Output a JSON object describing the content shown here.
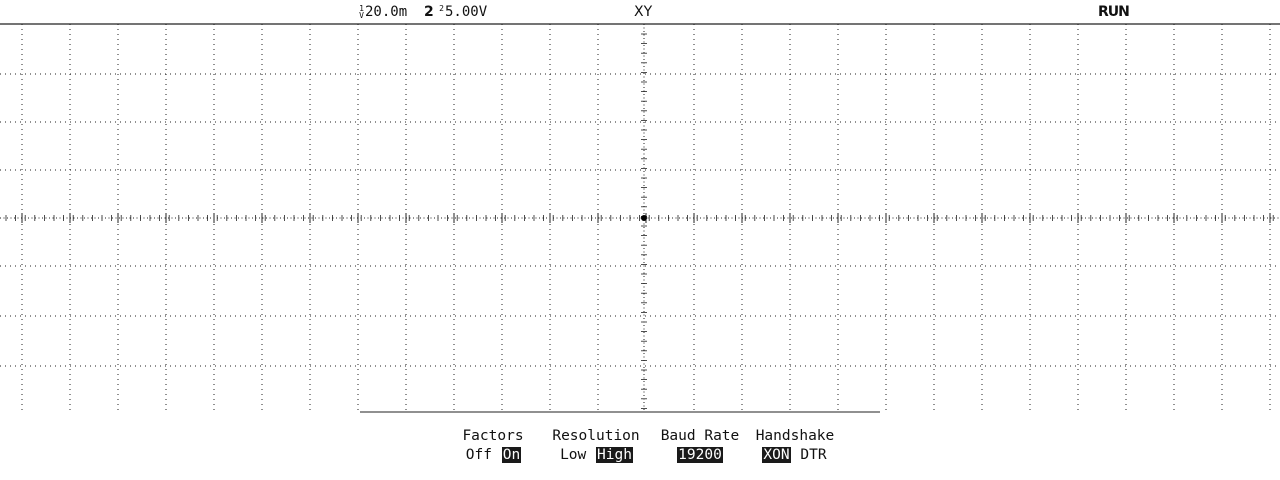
{
  "status": {
    "ch1_scale": "20.0",
    "ch1_unit": "m",
    "ch1_sub_top": "1",
    "ch1_sub_bottom": "V",
    "ch2_label": "2",
    "ch2_scale": "5.00V",
    "ch2_sub_top": "2",
    "ch2_sub_bottom": "",
    "mode": "XY",
    "run_state": "RUN"
  },
  "softkeys": [
    {
      "label": "Factors",
      "options": [
        {
          "text": "Off",
          "selected": false
        },
        {
          "text": "On",
          "selected": true
        }
      ]
    },
    {
      "label": "Resolution",
      "options": [
        {
          "text": "Low",
          "selected": false
        },
        {
          "text": "High",
          "selected": true
        }
      ]
    },
    {
      "label": "Baud Rate",
      "options": [
        {
          "text": "19200",
          "selected": true
        }
      ]
    },
    {
      "label": "Handshake",
      "options": [
        {
          "text": "XON",
          "selected": true
        },
        {
          "text": "DTR",
          "selected": false
        }
      ]
    }
  ],
  "colors": {
    "foreground": "#111111",
    "background": "#ffffff",
    "selected_bg": "#1a1a1a"
  }
}
